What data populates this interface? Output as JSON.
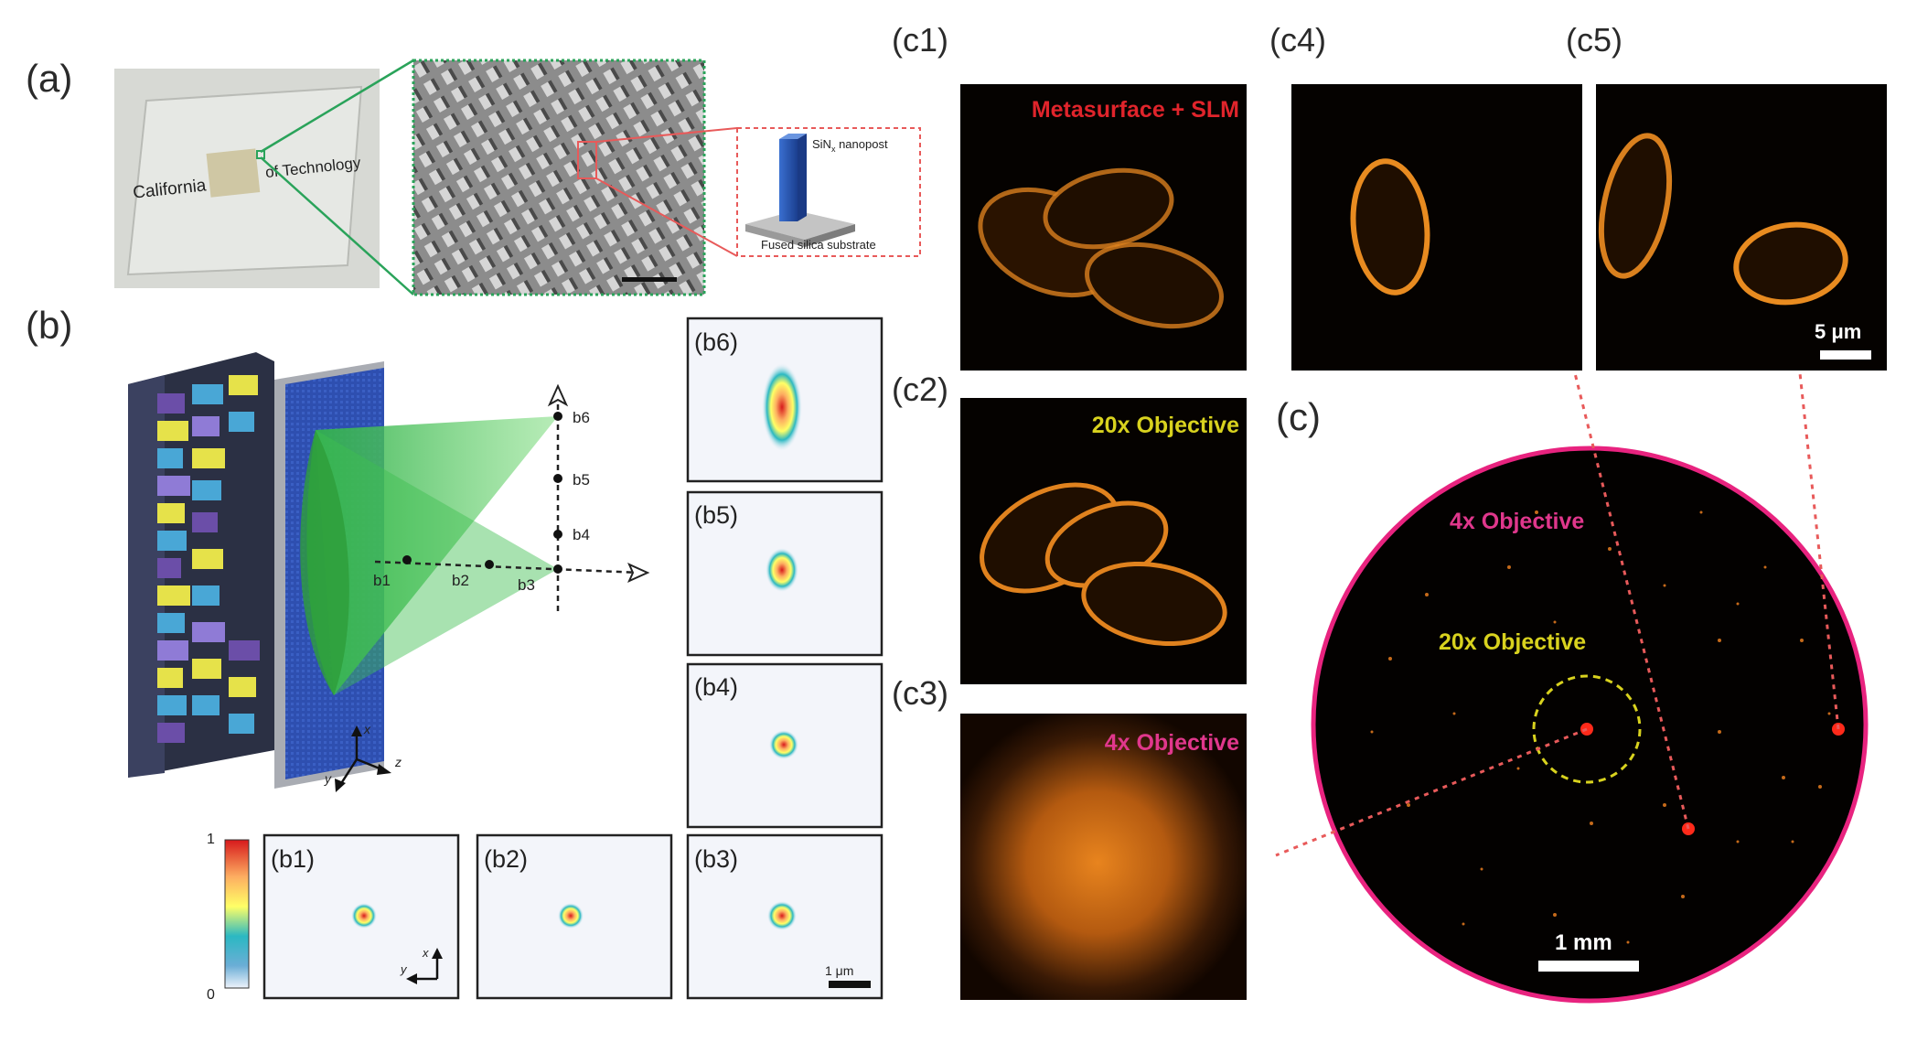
{
  "panels": {
    "a": "(a)",
    "b": "(b)",
    "c": "(c)",
    "c1": "(c1)",
    "c2": "(c2)",
    "c3": "(c3)",
    "c4": "(c4)",
    "c5": "(c5)",
    "b1": "(b1)",
    "b2": "(b2)",
    "b3": "(b3)",
    "b4": "(b4)",
    "b5": "(b5)",
    "b6": "(b6)"
  },
  "photo": {
    "text_left": "California",
    "text_right": "of Technology"
  },
  "schematic": {
    "nanopost_label": "SiN",
    "nanopost_sub": "x",
    "nanopost_suffix": " nanopost",
    "substrate_label": "Fused silica substrate"
  },
  "focal_points": [
    "b1",
    "b2",
    "b3",
    "b4",
    "b5",
    "b6"
  ],
  "axes3d": {
    "x": "x",
    "y": "y",
    "z": "z"
  },
  "colorbar": {
    "max": "1",
    "min": "0"
  },
  "psf_axes": {
    "x": "x",
    "y": "y"
  },
  "psf_scalebar": "1 μm",
  "overlays": {
    "c1": "Metasurface + SLM",
    "c2": "20x Objective",
    "c3": "4x Objective",
    "c_4x": "4x Objective",
    "c_20x": "20x Objective"
  },
  "scalebar_c5": "5 μm",
  "scalebar_c": "1 mm",
  "colors": {
    "green_frame": "#2aa35a",
    "red_dashed": "#e85a5a",
    "magenta_ring": "#e8237f",
    "cell_orange": "#e0821e",
    "cone_green": "#3fbf4f"
  }
}
